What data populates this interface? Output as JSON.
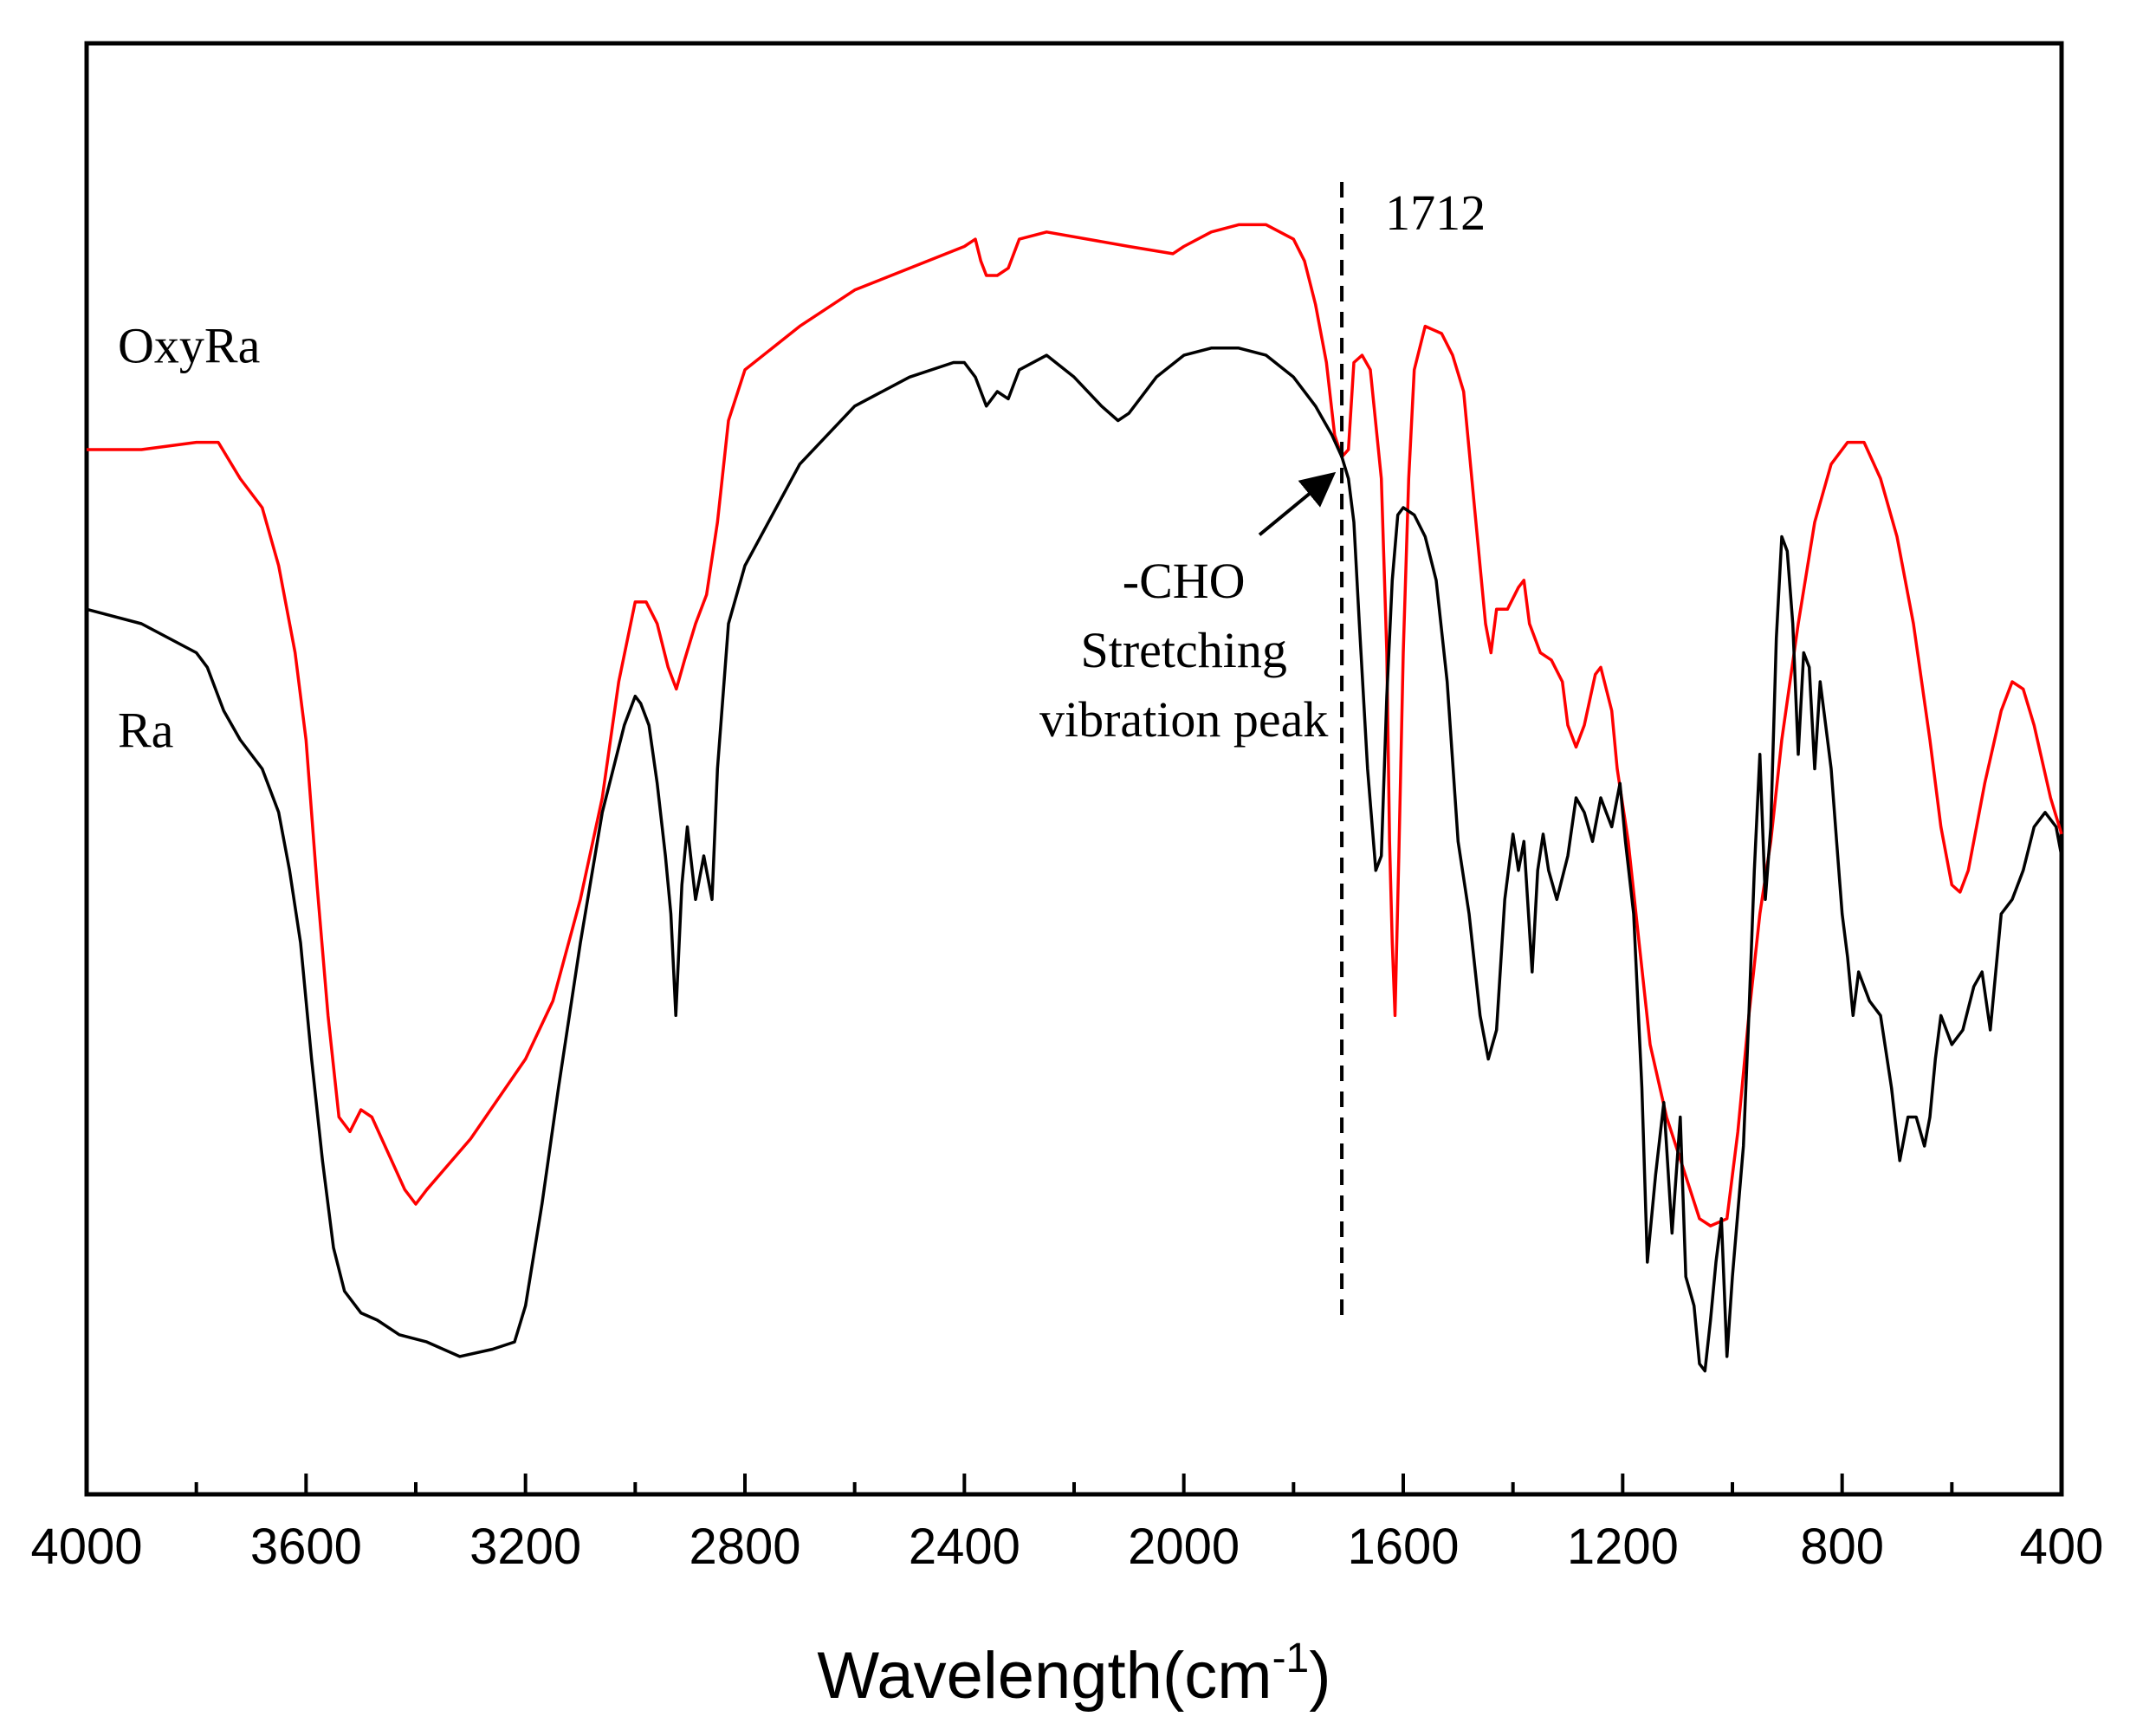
{
  "chart_data": {
    "type": "line",
    "title": "",
    "xlabel": "Wavelength(cm",
    "xlabel_sup": "-1",
    "xlabel_close": ")",
    "ylabel": "",
    "xlim": [
      4000,
      400
    ],
    "ylim": [
      0,
      100
    ],
    "x_ticks": [
      4000,
      3600,
      3200,
      2800,
      2400,
      2000,
      1600,
      1200,
      800,
      400
    ],
    "x_tick_labels": [
      "4000",
      "3600",
      "3200",
      "2800",
      "2400",
      "2000",
      "1600",
      "1200",
      "800",
      "400"
    ],
    "grid": false,
    "series": [
      {
        "name": "OxyRa",
        "color": "#ff0000",
        "points": [
          [
            4000,
            72
          ],
          [
            3900,
            72
          ],
          [
            3800,
            72.5
          ],
          [
            3760,
            72.5
          ],
          [
            3720,
            70
          ],
          [
            3680,
            68
          ],
          [
            3650,
            64
          ],
          [
            3620,
            58
          ],
          [
            3600,
            52
          ],
          [
            3580,
            42
          ],
          [
            3560,
            33
          ],
          [
            3540,
            26
          ],
          [
            3520,
            25
          ],
          [
            3500,
            26.5
          ],
          [
            3480,
            26
          ],
          [
            3450,
            23.5
          ],
          [
            3420,
            21
          ],
          [
            3400,
            20
          ],
          [
            3380,
            21
          ],
          [
            3300,
            24.5
          ],
          [
            3200,
            30
          ],
          [
            3150,
            34
          ],
          [
            3100,
            41
          ],
          [
            3060,
            48
          ],
          [
            3030,
            56
          ],
          [
            3000,
            61.5
          ],
          [
            2980,
            61.5
          ],
          [
            2960,
            60
          ],
          [
            2940,
            57
          ],
          [
            2925,
            55.5
          ],
          [
            2910,
            57.5
          ],
          [
            2890,
            60
          ],
          [
            2870,
            62
          ],
          [
            2850,
            67
          ],
          [
            2830,
            74
          ],
          [
            2800,
            77.5
          ],
          [
            2700,
            80.5
          ],
          [
            2600,
            83
          ],
          [
            2500,
            84.5
          ],
          [
            2400,
            86
          ],
          [
            2380,
            86.5
          ],
          [
            2370,
            85
          ],
          [
            2360,
            84
          ],
          [
            2340,
            84
          ],
          [
            2320,
            84.5
          ],
          [
            2300,
            86.5
          ],
          [
            2250,
            87
          ],
          [
            2100,
            86
          ],
          [
            2020,
            85.5
          ],
          [
            2000,
            86
          ],
          [
            1950,
            87
          ],
          [
            1900,
            87.5
          ],
          [
            1850,
            87.5
          ],
          [
            1800,
            86.5
          ],
          [
            1780,
            85
          ],
          [
            1760,
            82
          ],
          [
            1740,
            78
          ],
          [
            1725,
            73
          ],
          [
            1712,
            71.5
          ],
          [
            1700,
            72
          ],
          [
            1690,
            78
          ],
          [
            1675,
            78.5
          ],
          [
            1660,
            77.5
          ],
          [
            1640,
            70
          ],
          [
            1630,
            58
          ],
          [
            1625,
            45
          ],
          [
            1620,
            38
          ],
          [
            1615,
            33
          ],
          [
            1608,
            44
          ],
          [
            1600,
            58
          ],
          [
            1590,
            70
          ],
          [
            1580,
            77.5
          ],
          [
            1560,
            80.5
          ],
          [
            1530,
            80
          ],
          [
            1510,
            78.5
          ],
          [
            1490,
            76
          ],
          [
            1470,
            68
          ],
          [
            1450,
            60
          ],
          [
            1440,
            58
          ],
          [
            1430,
            61
          ],
          [
            1410,
            61
          ],
          [
            1390,
            62.5
          ],
          [
            1380,
            63
          ],
          [
            1370,
            60
          ],
          [
            1350,
            58
          ],
          [
            1330,
            57.5
          ],
          [
            1310,
            56
          ],
          [
            1300,
            53
          ],
          [
            1285,
            51.5
          ],
          [
            1270,
            53
          ],
          [
            1250,
            56.5
          ],
          [
            1240,
            57
          ],
          [
            1220,
            54
          ],
          [
            1210,
            50
          ],
          [
            1190,
            45
          ],
          [
            1170,
            38
          ],
          [
            1150,
            31
          ],
          [
            1120,
            26
          ],
          [
            1090,
            22.5
          ],
          [
            1060,
            19
          ],
          [
            1040,
            18.5
          ],
          [
            1010,
            19
          ],
          [
            990,
            25
          ],
          [
            970,
            33
          ],
          [
            950,
            40
          ],
          [
            930,
            45
          ],
          [
            910,
            52
          ],
          [
            880,
            60
          ],
          [
            850,
            67
          ],
          [
            820,
            71
          ],
          [
            790,
            72.5
          ],
          [
            760,
            72.5
          ],
          [
            730,
            70
          ],
          [
            700,
            66
          ],
          [
            670,
            60
          ],
          [
            640,
            52
          ],
          [
            620,
            46
          ],
          [
            600,
            42
          ],
          [
            585,
            41.5
          ],
          [
            570,
            43
          ],
          [
            540,
            49
          ],
          [
            510,
            54
          ],
          [
            490,
            56
          ],
          [
            470,
            55.5
          ],
          [
            450,
            53
          ],
          [
            420,
            48
          ],
          [
            400,
            45.5
          ]
        ]
      },
      {
        "name": "Ra",
        "color": "#000000",
        "points": [
          [
            4000,
            61
          ],
          [
            3900,
            60
          ],
          [
            3800,
            58
          ],
          [
            3780,
            57
          ],
          [
            3750,
            54
          ],
          [
            3720,
            52
          ],
          [
            3680,
            50
          ],
          [
            3650,
            47
          ],
          [
            3630,
            43
          ],
          [
            3610,
            38
          ],
          [
            3590,
            30
          ],
          [
            3570,
            23
          ],
          [
            3550,
            17
          ],
          [
            3530,
            14
          ],
          [
            3500,
            12.5
          ],
          [
            3470,
            12
          ],
          [
            3430,
            11
          ],
          [
            3380,
            10.5
          ],
          [
            3320,
            9.5
          ],
          [
            3260,
            10
          ],
          [
            3220,
            10.5
          ],
          [
            3200,
            13
          ],
          [
            3170,
            20
          ],
          [
            3140,
            28
          ],
          [
            3100,
            38
          ],
          [
            3060,
            47
          ],
          [
            3020,
            53
          ],
          [
            3000,
            55
          ],
          [
            2990,
            54.5
          ],
          [
            2975,
            53
          ],
          [
            2960,
            49
          ],
          [
            2945,
            44
          ],
          [
            2935,
            40
          ],
          [
            2926,
            33
          ],
          [
            2915,
            42
          ],
          [
            2905,
            46
          ],
          [
            2890,
            41
          ],
          [
            2875,
            44
          ],
          [
            2860,
            41
          ],
          [
            2850,
            50
          ],
          [
            2830,
            60
          ],
          [
            2800,
            64
          ],
          [
            2700,
            71
          ],
          [
            2600,
            75
          ],
          [
            2500,
            77
          ],
          [
            2420,
            78
          ],
          [
            2400,
            78
          ],
          [
            2380,
            77
          ],
          [
            2360,
            75
          ],
          [
            2340,
            76
          ],
          [
            2320,
            75.5
          ],
          [
            2300,
            77.5
          ],
          [
            2250,
            78.5
          ],
          [
            2200,
            77
          ],
          [
            2150,
            75
          ],
          [
            2120,
            74
          ],
          [
            2100,
            74.5
          ],
          [
            2050,
            77
          ],
          [
            2000,
            78.5
          ],
          [
            1950,
            79
          ],
          [
            1900,
            79
          ],
          [
            1850,
            78.5
          ],
          [
            1800,
            77
          ],
          [
            1760,
            75
          ],
          [
            1730,
            73
          ],
          [
            1712,
            71.5
          ],
          [
            1700,
            70
          ],
          [
            1690,
            67
          ],
          [
            1680,
            60
          ],
          [
            1665,
            50
          ],
          [
            1650,
            43
          ],
          [
            1640,
            44
          ],
          [
            1630,
            55
          ],
          [
            1620,
            63
          ],
          [
            1610,
            67.5
          ],
          [
            1600,
            68
          ],
          [
            1580,
            67.5
          ],
          [
            1560,
            66
          ],
          [
            1540,
            63
          ],
          [
            1520,
            56
          ],
          [
            1500,
            45
          ],
          [
            1480,
            40
          ],
          [
            1460,
            33
          ],
          [
            1445,
            30
          ],
          [
            1430,
            32
          ],
          [
            1415,
            41
          ],
          [
            1400,
            45.5
          ],
          [
            1390,
            43
          ],
          [
            1380,
            45
          ],
          [
            1365,
            36
          ],
          [
            1355,
            43
          ],
          [
            1345,
            45.5
          ],
          [
            1335,
            43
          ],
          [
            1320,
            41
          ],
          [
            1300,
            44
          ],
          [
            1285,
            48
          ],
          [
            1270,
            47
          ],
          [
            1255,
            45
          ],
          [
            1240,
            48
          ],
          [
            1230,
            47
          ],
          [
            1220,
            46
          ],
          [
            1205,
            49
          ],
          [
            1195,
            45
          ],
          [
            1180,
            40
          ],
          [
            1165,
            28
          ],
          [
            1155,
            16
          ],
          [
            1140,
            22
          ],
          [
            1125,
            27
          ],
          [
            1110,
            18
          ],
          [
            1095,
            26
          ],
          [
            1085,
            15
          ],
          [
            1070,
            13
          ],
          [
            1060,
            9
          ],
          [
            1050,
            8.5
          ],
          [
            1040,
            12
          ],
          [
            1030,
            16
          ],
          [
            1020,
            19
          ],
          [
            1010,
            9.5
          ],
          [
            1000,
            15
          ],
          [
            980,
            24
          ],
          [
            970,
            33
          ],
          [
            960,
            43
          ],
          [
            950,
            51
          ],
          [
            940,
            41
          ],
          [
            930,
            46
          ],
          [
            920,
            59
          ],
          [
            910,
            66
          ],
          [
            900,
            65
          ],
          [
            890,
            60
          ],
          [
            880,
            51
          ],
          [
            870,
            58
          ],
          [
            860,
            57
          ],
          [
            850,
            50
          ],
          [
            840,
            56
          ],
          [
            830,
            53
          ],
          [
            820,
            50
          ],
          [
            810,
            45
          ],
          [
            800,
            40
          ],
          [
            790,
            37
          ],
          [
            780,
            33
          ],
          [
            770,
            36
          ],
          [
            750,
            34
          ],
          [
            730,
            33
          ],
          [
            710,
            28
          ],
          [
            695,
            23
          ],
          [
            680,
            26
          ],
          [
            665,
            26
          ],
          [
            650,
            24
          ],
          [
            640,
            26
          ],
          [
            630,
            30
          ],
          [
            620,
            33
          ],
          [
            600,
            31
          ],
          [
            580,
            32
          ],
          [
            560,
            35
          ],
          [
            545,
            36
          ],
          [
            530,
            32
          ],
          [
            510,
            40
          ],
          [
            490,
            41
          ],
          [
            470,
            43
          ],
          [
            450,
            46
          ],
          [
            430,
            47
          ],
          [
            410,
            46
          ],
          [
            400,
            44
          ]
        ]
      }
    ],
    "annotations": {
      "vline_x": 1712,
      "vline_label": "1712",
      "arrow_target": [
        1712,
        71.5
      ],
      "peak_label_lines": [
        "-CHO",
        "Stretching",
        "vibration peak"
      ]
    }
  }
}
